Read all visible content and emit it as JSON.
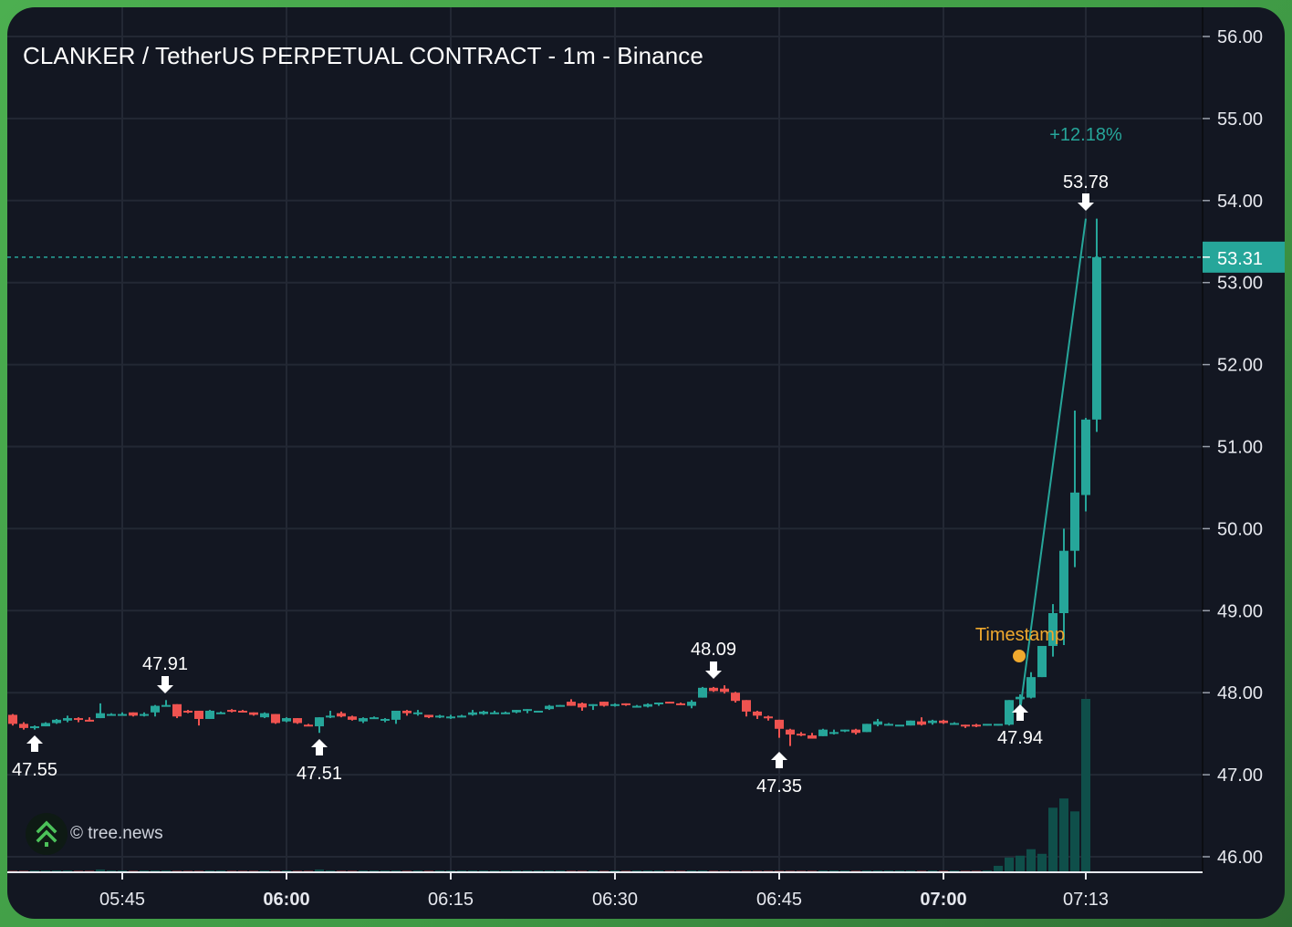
{
  "header": {
    "title": "CLANKER / TetherUS PERPETUAL CONTRACT - 1m - Binance"
  },
  "watermark": {
    "text": "© tree.news",
    "icon": "tree-logo-icon"
  },
  "colors": {
    "background": "#131722",
    "grid": "#232834",
    "up": "#26a69a",
    "down": "#ef5350",
    "volume_up": "#0f4f4a",
    "volume_down": "#5b2b32",
    "timestamp": "#f0a92e",
    "frame": "#4caf50"
  },
  "price_axis": {
    "labels": [
      "56.00",
      "55.00",
      "54.00",
      "53.00",
      "52.00",
      "51.00",
      "50.00",
      "49.00",
      "48.00",
      "47.00",
      "46.00"
    ],
    "current_price": "53.31"
  },
  "time_axis": {
    "labels": [
      {
        "text": "05:45",
        "bold": false
      },
      {
        "text": "06:00",
        "bold": true
      },
      {
        "text": "06:15",
        "bold": false
      },
      {
        "text": "06:30",
        "bold": false
      },
      {
        "text": "06:45",
        "bold": false
      },
      {
        "text": "07:00",
        "bold": true
      },
      {
        "text": "07:13",
        "bold": false
      }
    ]
  },
  "annotations": {
    "change_pct": "+12.18%",
    "timestamp_label": "Timestamp",
    "markers": [
      {
        "label": "47.55",
        "dir": "up"
      },
      {
        "label": "47.91",
        "dir": "down"
      },
      {
        "label": "47.51",
        "dir": "up"
      },
      {
        "label": "48.09",
        "dir": "down"
      },
      {
        "label": "47.35",
        "dir": "up"
      },
      {
        "label": "47.94",
        "dir": "up"
      },
      {
        "label": "53.78",
        "dir": "down"
      }
    ]
  },
  "chart_data": {
    "type": "candlestick",
    "title": "CLANKER / TetherUS PERPETUAL CONTRACT - 1m - Binance",
    "xlabel": "",
    "ylabel": "",
    "ylim": [
      45.8,
      56.2
    ],
    "grid": true,
    "interval": "1m",
    "start_time": "05:35",
    "end_time": "07:13",
    "last_price": 53.31,
    "period_high": 53.78,
    "period_low": 47.35,
    "change_pct": 12.18,
    "x_ticks": [
      "05:45",
      "06:00",
      "06:15",
      "06:30",
      "06:45",
      "07:00",
      "07:13"
    ],
    "y_ticks": [
      46,
      47,
      48,
      49,
      50,
      51,
      52,
      53,
      54,
      55,
      56
    ],
    "candles": [
      [
        47.73,
        47.74,
        47.6,
        47.62
      ],
      [
        47.62,
        47.64,
        47.55,
        47.57
      ],
      [
        47.57,
        47.6,
        47.55,
        47.59
      ],
      [
        47.59,
        47.64,
        47.59,
        47.63
      ],
      [
        47.63,
        47.68,
        47.62,
        47.67
      ],
      [
        47.66,
        47.72,
        47.64,
        47.69
      ],
      [
        47.69,
        47.7,
        47.64,
        47.67
      ],
      [
        47.67,
        47.7,
        47.65,
        47.66
      ],
      [
        47.69,
        47.87,
        47.69,
        47.75
      ],
      [
        47.74,
        47.75,
        47.74,
        47.74
      ],
      [
        47.74,
        47.76,
        47.72,
        47.74
      ],
      [
        47.76,
        47.76,
        47.71,
        47.72
      ],
      [
        47.72,
        47.76,
        47.71,
        47.74
      ],
      [
        47.76,
        47.85,
        47.71,
        47.84
      ],
      [
        47.85,
        47.91,
        47.84,
        47.85
      ],
      [
        47.86,
        47.86,
        47.69,
        47.71
      ],
      [
        47.78,
        47.79,
        47.75,
        47.77
      ],
      [
        47.78,
        47.78,
        47.6,
        47.68
      ],
      [
        47.68,
        47.79,
        47.68,
        47.78
      ],
      [
        47.75,
        47.77,
        47.74,
        47.76
      ],
      [
        47.79,
        47.8,
        47.76,
        47.77
      ],
      [
        47.78,
        47.79,
        47.77,
        47.77
      ],
      [
        47.76,
        47.76,
        47.72,
        47.73
      ],
      [
        47.7,
        47.76,
        47.69,
        47.75
      ],
      [
        47.74,
        47.74,
        47.62,
        47.63
      ],
      [
        47.65,
        47.7,
        47.64,
        47.69
      ],
      [
        47.69,
        47.69,
        47.62,
        47.63
      ],
      [
        47.61,
        47.62,
        47.6,
        47.6
      ],
      [
        47.59,
        47.7,
        47.51,
        47.7
      ],
      [
        47.71,
        47.78,
        47.69,
        47.72
      ],
      [
        47.75,
        47.77,
        47.7,
        47.71
      ],
      [
        47.71,
        47.72,
        47.66,
        47.67
      ],
      [
        47.65,
        47.7,
        47.63,
        47.69
      ],
      [
        47.69,
        47.71,
        47.68,
        47.7
      ],
      [
        47.66,
        47.69,
        47.64,
        47.68
      ],
      [
        47.67,
        47.7,
        47.62,
        47.78
      ],
      [
        47.78,
        47.79,
        47.72,
        47.75
      ],
      [
        47.74,
        47.79,
        47.72,
        47.76
      ],
      [
        47.73,
        47.73,
        47.69,
        47.7
      ],
      [
        47.7,
        47.73,
        47.69,
        47.72
      ],
      [
        47.71,
        47.73,
        47.68,
        47.71
      ],
      [
        47.7,
        47.73,
        47.7,
        47.72
      ],
      [
        47.73,
        47.79,
        47.72,
        47.76
      ],
      [
        47.74,
        47.78,
        47.73,
        47.77
      ],
      [
        47.75,
        47.78,
        47.74,
        47.76
      ],
      [
        47.75,
        47.77,
        47.75,
        47.76
      ],
      [
        47.76,
        47.79,
        47.75,
        47.79
      ],
      [
        47.79,
        47.8,
        47.75,
        47.8
      ],
      [
        47.78,
        47.78,
        47.77,
        47.78
      ],
      [
        47.8,
        47.85,
        47.79,
        47.84
      ],
      [
        47.85,
        47.85,
        47.84,
        47.85
      ],
      [
        47.89,
        47.92,
        47.84,
        47.84
      ],
      [
        47.87,
        47.88,
        47.78,
        47.82
      ],
      [
        47.85,
        47.86,
        47.79,
        47.86
      ],
      [
        47.89,
        47.89,
        47.83,
        47.84
      ],
      [
        47.86,
        47.87,
        47.83,
        47.86
      ],
      [
        47.87,
        47.87,
        47.84,
        47.85
      ],
      [
        47.84,
        47.85,
        47.83,
        47.84
      ],
      [
        47.83,
        47.87,
        47.82,
        47.86
      ],
      [
        47.87,
        47.88,
        47.84,
        47.88
      ],
      [
        47.89,
        47.89,
        47.87,
        47.88
      ],
      [
        47.87,
        47.88,
        47.85,
        47.86
      ],
      [
        47.84,
        47.91,
        47.81,
        47.89
      ],
      [
        47.94,
        48.07,
        47.94,
        48.06
      ],
      [
        48.06,
        48.07,
        48.01,
        48.02
      ],
      [
        48.05,
        48.09,
        47.99,
        48.01
      ],
      [
        48.0,
        48.01,
        47.88,
        47.9
      ],
      [
        47.91,
        47.91,
        47.71,
        47.77
      ],
      [
        47.77,
        47.78,
        47.68,
        47.72
      ],
      [
        47.71,
        47.72,
        47.66,
        47.7
      ],
      [
        47.67,
        47.67,
        47.45,
        47.56
      ],
      [
        47.55,
        47.56,
        47.35,
        47.49
      ],
      [
        47.5,
        47.52,
        47.47,
        47.49
      ],
      [
        47.48,
        47.51,
        47.44,
        47.44
      ],
      [
        47.47,
        47.56,
        47.47,
        47.55
      ],
      [
        47.51,
        47.55,
        47.49,
        47.52
      ],
      [
        47.53,
        47.55,
        47.52,
        47.55
      ],
      [
        47.55,
        47.56,
        47.49,
        47.51
      ],
      [
        47.52,
        47.62,
        47.52,
        47.62
      ],
      [
        47.61,
        47.68,
        47.59,
        47.65
      ],
      [
        47.62,
        47.63,
        47.62,
        47.62
      ],
      [
        47.61,
        47.61,
        47.61,
        47.61
      ],
      [
        47.6,
        47.66,
        47.6,
        47.66
      ],
      [
        47.65,
        47.7,
        47.6,
        47.61
      ],
      [
        47.63,
        47.67,
        47.61,
        47.66
      ],
      [
        47.66,
        47.67,
        47.62,
        47.63
      ],
      [
        47.63,
        47.64,
        47.63,
        47.63
      ],
      [
        47.61,
        47.61,
        47.57,
        47.59
      ],
      [
        47.61,
        47.62,
        47.58,
        47.59
      ],
      [
        47.61,
        47.61,
        47.6,
        47.62
      ],
      [
        47.6,
        47.61,
        47.6,
        47.62
      ],
      [
        47.61,
        47.91,
        47.6,
        47.91
      ],
      [
        47.92,
        47.98,
        47.76,
        47.95
      ],
      [
        47.94,
        48.25,
        47.93,
        48.19
      ],
      [
        48.19,
        48.55,
        48.19,
        48.57
      ],
      [
        48.57,
        49.08,
        48.44,
        48.97
      ],
      [
        48.97,
        50.0,
        48.58,
        49.73
      ],
      [
        49.73,
        51.44,
        49.53,
        50.44
      ],
      [
        50.41,
        51.35,
        50.21,
        51.33
      ],
      [
        51.33,
        53.78,
        51.18,
        53.31
      ]
    ],
    "volume_relative": [
      2,
      1,
      1,
      1,
      1,
      1,
      1,
      1,
      3,
      1,
      1,
      1,
      1,
      1,
      2,
      1,
      1,
      1,
      1,
      1,
      1,
      1,
      1,
      1,
      2,
      1,
      1,
      1,
      3,
      1,
      1,
      1,
      1,
      1,
      1,
      1,
      1,
      1,
      1,
      1,
      1,
      1,
      1,
      1,
      1,
      1,
      1,
      1,
      1,
      1,
      1,
      1,
      1,
      1,
      1,
      1,
      1,
      1,
      1,
      1,
      1,
      1,
      1,
      1,
      1,
      1,
      1,
      1,
      1,
      1,
      1,
      1,
      1,
      1,
      1,
      1,
      1,
      1,
      1,
      1,
      1,
      1,
      1,
      1,
      1,
      1,
      1,
      1,
      1,
      2,
      7,
      16,
      18,
      25,
      20,
      70,
      80,
      66,
      188
    ]
  }
}
